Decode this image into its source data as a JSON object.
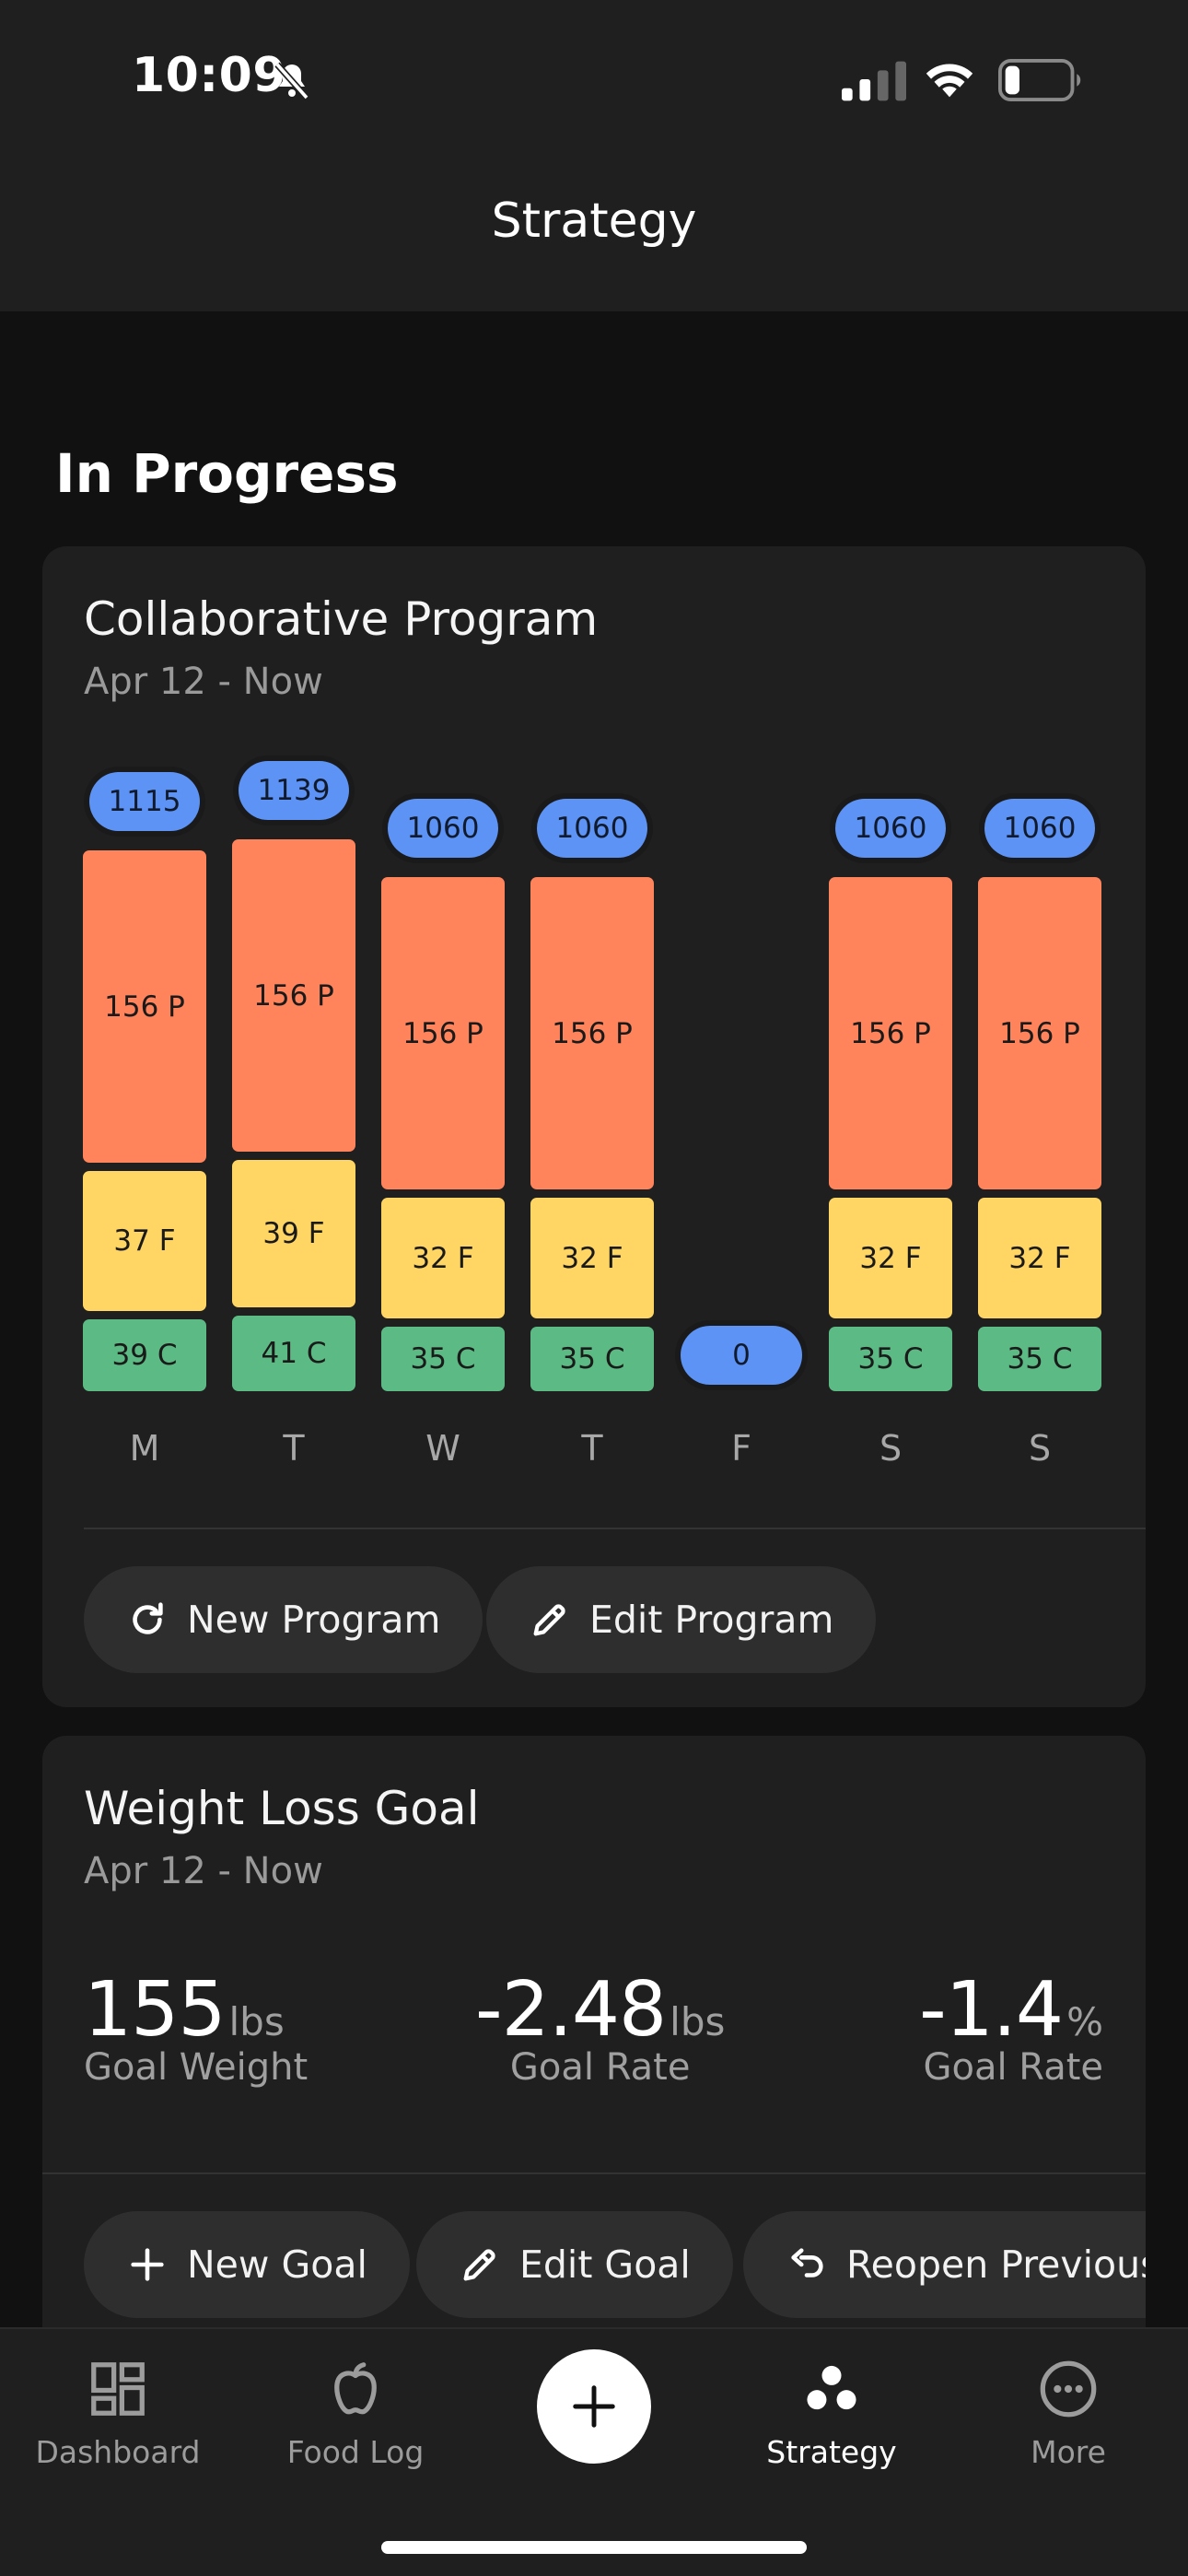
{
  "status_bar": {
    "time": "10:09"
  },
  "header": {
    "title": "Strategy"
  },
  "section": {
    "title": "In Progress"
  },
  "program_card": {
    "title": "Collaborative Program",
    "date_range": "Apr 12 - Now",
    "days": [
      {
        "day": "M",
        "total": "1115",
        "protein": "156 P",
        "fat": "37 F",
        "carbs": "39 C"
      },
      {
        "day": "T",
        "total": "1139",
        "protein": "156 P",
        "fat": "39 F",
        "carbs": "41 C"
      },
      {
        "day": "W",
        "total": "1060",
        "protein": "156 P",
        "fat": "32 F",
        "carbs": "35 C"
      },
      {
        "day": "T",
        "total": "1060",
        "protein": "156 P",
        "fat": "32 F",
        "carbs": "35 C"
      },
      {
        "day": "F",
        "total": "0",
        "protein": "",
        "fat": "",
        "carbs": ""
      },
      {
        "day": "S",
        "total": "1060",
        "protein": "156 P",
        "fat": "32 F",
        "carbs": "35 C"
      },
      {
        "day": "S",
        "total": "1060",
        "protein": "156 P",
        "fat": "32 F",
        "carbs": "35 C"
      }
    ],
    "buttons": {
      "new_program": "New Program",
      "edit_program": "Edit Program"
    }
  },
  "chart_data": {
    "type": "bar",
    "categories": [
      "M",
      "T",
      "W",
      "T",
      "F",
      "S",
      "S"
    ],
    "totals": [
      1115,
      1139,
      1060,
      1060,
      0,
      1060,
      1060
    ],
    "series": [
      {
        "name": "P",
        "values": [
          156,
          156,
          156,
          156,
          0,
          156,
          156
        ]
      },
      {
        "name": "F",
        "values": [
          37,
          39,
          32,
          32,
          0,
          32,
          32
        ]
      },
      {
        "name": "C",
        "values": [
          39,
          41,
          35,
          35,
          0,
          35,
          35
        ]
      }
    ],
    "colors": {
      "P": "#ff835b",
      "F": "#ffd563",
      "C": "#5cbb84",
      "total": "#5c93f5"
    }
  },
  "goal_card": {
    "title": "Weight Loss Goal",
    "date_range": "Apr 12 - Now",
    "stats": [
      {
        "value": "155",
        "unit": "lbs",
        "label": "Goal Weight"
      },
      {
        "value": "-2.48",
        "unit": "lbs",
        "label": "Goal Rate"
      },
      {
        "value": "-1.4",
        "unit": "%",
        "label": "Goal Rate"
      }
    ],
    "buttons": {
      "new_goal": "New Goal",
      "edit_goal": "Edit Goal",
      "reopen_previous": "Reopen Previous"
    }
  },
  "nav": {
    "items": [
      {
        "label": "Dashboard",
        "icon": "dashboard-icon"
      },
      {
        "label": "Food Log",
        "icon": "apple-icon"
      },
      {
        "label": "Strategy",
        "icon": "strategy-icon"
      },
      {
        "label": "More",
        "icon": "more-icon"
      }
    ],
    "add_icon": "plus-icon"
  }
}
